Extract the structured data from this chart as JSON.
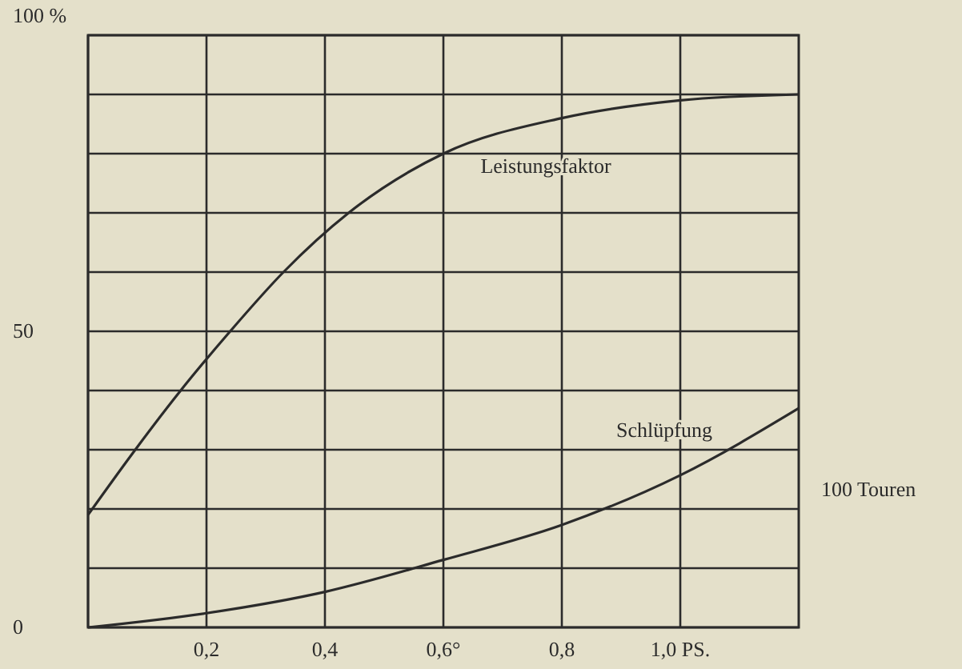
{
  "chart_data": {
    "type": "line",
    "x": [
      0,
      0.076,
      0.154,
      0.24,
      0.33,
      0.44,
      0.6,
      0.8,
      1.0,
      1.2
    ],
    "series": [
      {
        "name": "Leistungsfaktor",
        "color": "#2b2b2b",
        "values": [
          19,
          29.5,
          39.7,
          50,
          60,
          70,
          80,
          86,
          89,
          90
        ]
      },
      {
        "name": "Schlüpfung",
        "color": "#2b2b2b",
        "x": [
          0,
          0.2,
          0.4,
          0.6,
          0.8,
          1.0,
          1.2
        ],
        "values": [
          0,
          2.4,
          6,
          11.4,
          17.3,
          25.7,
          37
        ]
      }
    ],
    "xlim": [
      0,
      1.2
    ],
    "xticks": [
      {
        "value": 0,
        "label": null
      },
      {
        "value": 0.2,
        "label": "0,2"
      },
      {
        "value": 0.4,
        "label": "0,4"
      },
      {
        "value": 0.6,
        "label": "0,6°"
      },
      {
        "value": 0.8,
        "label": "0,8"
      },
      {
        "value": 1.0,
        "label": "1,0 PS."
      }
    ],
    "ylim": [
      0,
      100
    ],
    "yticks": [
      0,
      {
        "value": 10,
        "label": null
      },
      {
        "value": 20,
        "label": null
      },
      {
        "value": 30,
        "label": null
      },
      {
        "value": 40,
        "label": null
      },
      50,
      {
        "value": 60,
        "label": null
      },
      {
        "value": 70,
        "label": null
      },
      {
        "value": 80,
        "label": null
      },
      {
        "value": 90,
        "label": null
      },
      {
        "value": 100,
        "label": "100 %"
      }
    ],
    "annotations": [
      "100 Touren"
    ],
    "grid": true,
    "marker": "none",
    "line_style": "solid"
  }
}
